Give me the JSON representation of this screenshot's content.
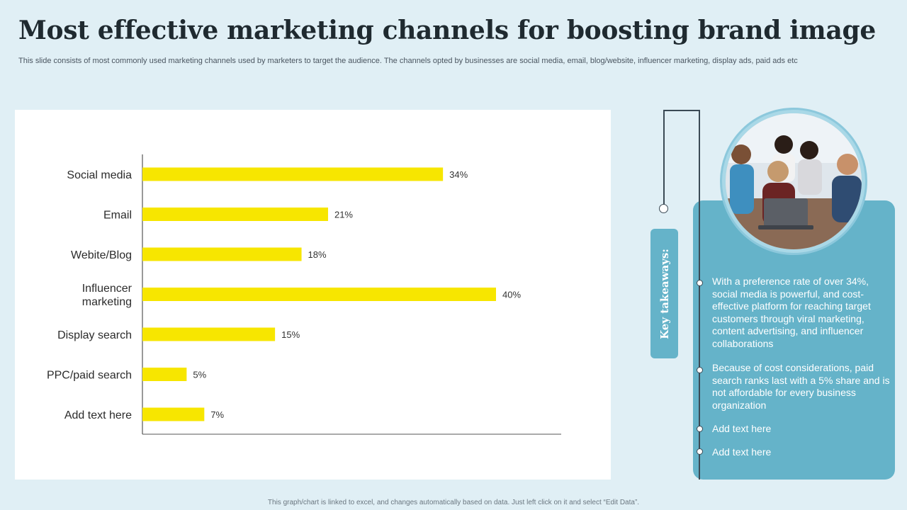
{
  "header": {
    "title": "Most effective marketing channels for boosting brand image",
    "subtitle": "This slide consists of most commonly used marketing channels used by marketers to target the audience. The channels opted by businesses are social media, email, blog/website, influencer marketing, display ads, paid ads etc"
  },
  "chart_data": {
    "type": "bar",
    "orientation": "horizontal",
    "categories": [
      "Social media",
      "Email",
      "Webite/Blog",
      "Influencer marketing",
      "Display search",
      "PPC/paid search",
      "Add text here"
    ],
    "category_lines": [
      [
        "Social media"
      ],
      [
        "Email"
      ],
      [
        "Webite/Blog"
      ],
      [
        "Influencer",
        "marketing"
      ],
      [
        "Display search"
      ],
      [
        "PPC/paid search"
      ],
      [
        "Add text here"
      ]
    ],
    "values": [
      34,
      21,
      18,
      40,
      15,
      5,
      7
    ],
    "value_labels": [
      "34%",
      "21%",
      "18%",
      "40%",
      "15%",
      "5%",
      "7%"
    ],
    "xlim": [
      0,
      50
    ],
    "bar_color": "#f7e600",
    "title": "",
    "xlabel": "",
    "ylabel": "",
    "grid": false,
    "legend": "none"
  },
  "takeaways": {
    "tab_label": "Key takeaways:",
    "items": [
      "With a preference rate of over 34%, social media is powerful, and cost-effective platform for reaching target customers through viral marketing, content advertising, and influencer collaborations",
      "Because of cost considerations, paid search ranks last with a 5% share and is not affordable for every business organization",
      "Add text here",
      "Add text here"
    ]
  },
  "colors": {
    "background": "#e0eff5",
    "accent": "#65b3c9",
    "bar": "#f7e600"
  },
  "footer": {
    "note": "This graph/chart is linked to excel, and changes automatically based on data. Just left click on it and select “Edit Data”."
  }
}
